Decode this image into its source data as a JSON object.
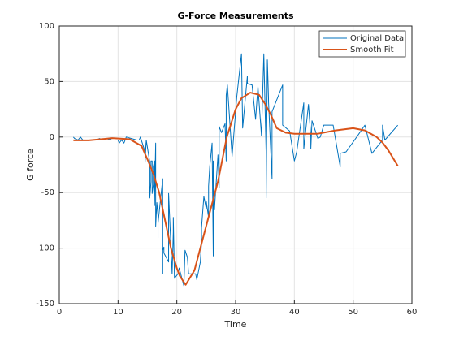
{
  "chart_data": {
    "type": "line",
    "title": "G-Force Measurements",
    "x_label": "Time",
    "y_label": "G force",
    "xlim": [
      0,
      60
    ],
    "xticks": [
      0,
      10,
      20,
      30,
      40,
      50,
      60
    ],
    "ylim": [
      -150,
      100
    ],
    "yticks": [
      -150,
      -100,
      -50,
      0,
      50,
      100
    ],
    "grid": true,
    "legend": "northeast",
    "series": [
      {
        "name": "Original Data",
        "color": "#0072bd",
        "width": 1,
        "x": [
          2.4,
          2.6,
          3.2,
          3.6,
          4.0,
          6.2,
          6.6,
          6.8,
          7.8,
          8.2,
          8.8,
          8.8,
          9.6,
          10.0,
          10.2,
          10.6,
          11.0,
          11.4,
          13.2,
          13.6,
          13.8,
          14.6,
          14.6,
          14.6,
          14.6,
          14.6,
          14.6,
          14.8,
          15.4,
          15.4,
          15.4,
          15.4,
          15.6,
          15.6,
          15.8,
          15.8,
          16.0,
          16.0,
          16.2,
          16.2,
          16.2,
          16.4,
          16.4,
          16.6,
          16.8,
          16.8,
          16.8,
          17.6,
          17.6,
          17.6,
          17.6,
          17.8,
          17.8,
          18.6,
          18.6,
          19.2,
          19.4,
          19.4,
          19.6,
          20.2,
          20.4,
          21.2,
          21.4,
          21.8,
          22.0,
          23.2,
          23.4,
          24.0,
          24.2,
          24.2,
          24.6,
          25.0,
          25.0,
          25.4,
          25.4,
          25.6,
          26.0,
          26.2,
          26.2,
          26.4,
          27.0,
          27.2,
          27.2,
          27.2,
          27.6,
          28.2,
          28.4,
          28.4,
          28.6,
          29.4,
          30.2,
          31.0,
          31.2,
          32.0,
          32.0,
          32.8,
          33.4,
          33.8,
          34.4,
          34.8,
          35.2,
          35.2,
          35.4,
          35.6,
          35.6,
          36.2,
          36.2,
          38.0,
          38.0,
          39.2,
          39.4,
          40.0,
          40.4,
          41.6,
          41.6,
          42.4,
          42.8,
          42.8,
          43.0,
          44.0,
          44.4,
          45.0,
          46.6,
          47.8,
          47.8,
          48.8,
          50.6,
          52.0,
          53.2,
          55.0,
          55.0,
          55.4,
          57.6
        ],
        "values": [
          0.0,
          -1.3,
          -2.7,
          0.0,
          -2.7,
          -2.7,
          -2.7,
          -1.3,
          -2.7,
          -2.7,
          -1.3,
          -2.7,
          -2.7,
          -2.7,
          -5.4,
          -2.7,
          -5.4,
          0.0,
          -2.7,
          -2.7,
          0.0,
          -13.3,
          -5.4,
          -5.4,
          -9.3,
          -16.0,
          -22.8,
          -2.7,
          -22.8,
          -32.1,
          -53.5,
          -54.9,
          -40.2,
          -21.5,
          -21.5,
          -50.8,
          -42.9,
          -26.8,
          -21.5,
          -50.8,
          -61.7,
          -5.4,
          -80.4,
          -59.0,
          -71.0,
          -91.1,
          -77.7,
          -37.5,
          -85.6,
          -123.1,
          -101.9,
          -99.1,
          -104.4,
          -112.5,
          -50.8,
          -123.1,
          -85.6,
          -72.3,
          -127.2,
          -123.1,
          -117.9,
          -134.0,
          -101.9,
          -108.4,
          -123.1,
          -123.1,
          -128.5,
          -112.5,
          -95.1,
          -81.8,
          -53.5,
          -64.4,
          -57.6,
          -72.3,
          -44.3,
          -26.8,
          -5.4,
          -107.1,
          -21.5,
          -65.6,
          -16.0,
          -45.6,
          -24.2,
          9.5,
          4.0,
          12.0,
          -21.5,
          37.5,
          46.9,
          -17.4,
          36.2,
          75.0,
          8.1,
          54.9,
          48.2,
          46.9,
          16.0,
          45.6,
          1.3,
          75.0,
          -16.0,
          -54.9,
          69.6,
          34.8,
          32.1,
          -37.5,
          22.8,
          46.9,
          10.7,
          5.4,
          -1.3,
          -21.5,
          -13.3,
          30.8,
          -10.7,
          29.4,
          0.0,
          -10.7,
          14.7,
          -1.3,
          0.0,
          10.7,
          10.7,
          -26.8,
          -14.7,
          -13.3,
          0.0,
          10.7,
          -14.7,
          -2.7,
          10.7,
          -2.7,
          10.7
        ]
      },
      {
        "name": "Smooth Fit",
        "color": "#d95319",
        "width": 2,
        "x": [
          2.4,
          5,
          9,
          12,
          14,
          15,
          16,
          17,
          18,
          19,
          20,
          20.5,
          21.5,
          23,
          25,
          27,
          28.5,
          30,
          31,
          32.5,
          34,
          35,
          36,
          37,
          38.5,
          40,
          42,
          44,
          47,
          50,
          52,
          54,
          55,
          56,
          57.6
        ],
        "values": [
          -3,
          -3,
          -1,
          -2,
          -8,
          -20,
          -33,
          -50,
          -75,
          -100,
          -118,
          -125,
          -133,
          -120,
          -80,
          -40,
          0,
          25,
          35,
          40,
          38,
          30,
          20,
          8,
          4,
          3,
          3,
          3,
          6,
          8,
          6,
          0,
          -5,
          -12,
          -26
        ]
      }
    ]
  }
}
